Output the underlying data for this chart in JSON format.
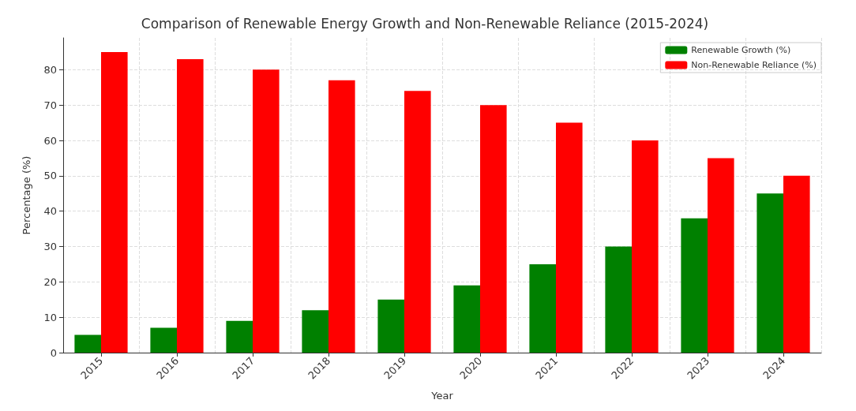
{
  "chart_data": {
    "type": "bar",
    "title": "Comparison of Renewable Energy Growth and Non-Renewable Reliance (2015-2024)",
    "xlabel": "Year",
    "ylabel": "Percentage (%)",
    "categories": [
      "2015",
      "2016",
      "2017",
      "2018",
      "2019",
      "2020",
      "2021",
      "2022",
      "2023",
      "2024"
    ],
    "series": [
      {
        "name": "Renewable Growth (%)",
        "color": "#008000",
        "values": [
          5,
          7,
          9,
          12,
          15,
          19,
          25,
          30,
          38,
          45
        ]
      },
      {
        "name": "Non-Renewable Reliance (%)",
        "color": "#ff0000",
        "values": [
          85,
          83,
          80,
          77,
          74,
          70,
          65,
          60,
          55,
          50
        ]
      }
    ],
    "ylim": [
      0,
      89
    ],
    "yticks": [
      0,
      10,
      20,
      30,
      40,
      50,
      60,
      70,
      80
    ],
    "grid": true,
    "legend": "top right"
  }
}
